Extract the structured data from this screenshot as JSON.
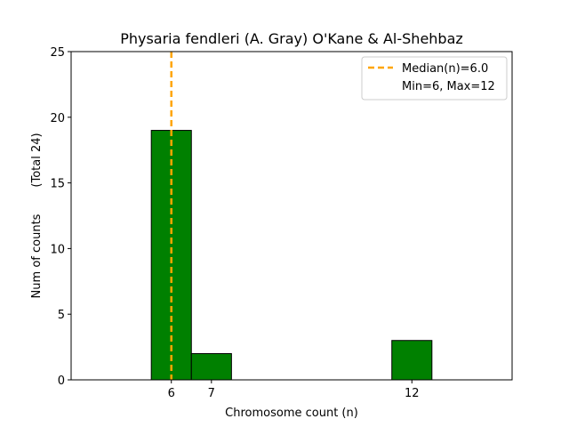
{
  "chart_data": {
    "type": "bar",
    "title": "Physaria fendleri (A. Gray) O'Kane & Al-Shehbaz",
    "xlabel": "Chromosome count (n)",
    "ylabel": "Num of counts",
    "ylabel_secondary": "(Total 24)",
    "xlim": [
      3.5,
      14.5
    ],
    "ylim": [
      0,
      25
    ],
    "x_ticks": [
      6,
      7,
      12
    ],
    "y_ticks": [
      0,
      5,
      10,
      15,
      20,
      25
    ],
    "bars": [
      {
        "x": 6,
        "value": 19
      },
      {
        "x": 7,
        "value": 2
      },
      {
        "x": 12,
        "value": 3
      }
    ],
    "bar_width": 1,
    "bar_color": "#008000",
    "median": {
      "value": 6.0,
      "color": "#ffa500"
    },
    "legend": {
      "placement": "top-right",
      "entries": [
        "Median(n)=6.0",
        "Min=6, Max=12"
      ]
    },
    "grid": false
  }
}
